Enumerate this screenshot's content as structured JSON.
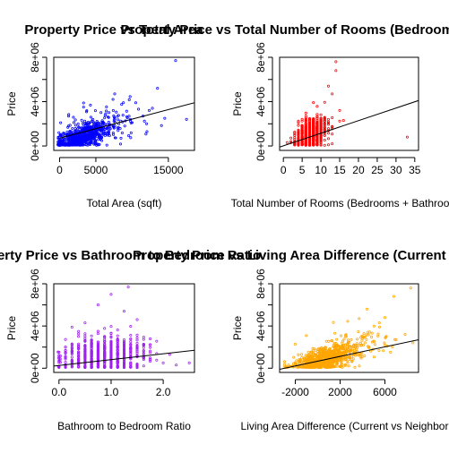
{
  "chart_data": [
    {
      "type": "scatter",
      "title": "Property Price vs Total Area",
      "xlabel": "Total Area (sqft)",
      "ylabel": "Price",
      "color": "#0000ff",
      "xlim": [
        -800,
        18600
      ],
      "ylim": [
        -400000,
        8000000
      ],
      "xticks": [
        0,
        5000,
        15000
      ],
      "xtick_labels": [
        "0",
        "5000",
        "15000"
      ],
      "yticks": [
        0,
        4000000,
        8000000
      ],
      "ytick_labels": [
        "0e+00",
        "4e+06",
        "8e+06"
      ],
      "trend": {
        "x": [
          0,
          18600
        ],
        "y": [
          700000,
          3900000
        ]
      },
      "clusters": [
        {
          "center": [
            2800,
            700000
          ],
          "spread": [
            2000,
            700000
          ],
          "n": 700,
          "corr": 0.65
        },
        {
          "center": [
            6000,
            1900000
          ],
          "spread": [
            2600,
            1000000
          ],
          "n": 120,
          "corr": 0.3
        }
      ],
      "outliers": [
        [
          16000,
          7700000
        ],
        [
          13500,
          5200000
        ],
        [
          11500,
          2700000
        ],
        [
          12800,
          3400000
        ],
        [
          14500,
          2500000
        ],
        [
          17500,
          2400000
        ],
        [
          10500,
          3900000
        ],
        [
          8800,
          3900000
        ],
        [
          7600,
          4700000
        ],
        [
          10000,
          2100000
        ],
        [
          12000,
          2000000
        ]
      ]
    },
    {
      "type": "scatter",
      "title": "Property Price vs Total Number of Rooms (Bedrooms + Bathrooms)",
      "xlabel": "Total Number of Rooms (Bedrooms + Bathrooms)",
      "ylabel": "Price",
      "color": "#ff0000",
      "xlim": [
        -1,
        36
      ],
      "ylim": [
        -400000,
        8000000
      ],
      "xticks": [
        0,
        5,
        10,
        15,
        20,
        25,
        30,
        35
      ],
      "xtick_labels": [
        "0",
        "5",
        "10",
        "15",
        "20",
        "25",
        "30",
        "35"
      ],
      "yticks": [
        0,
        4000000,
        8000000
      ],
      "ytick_labels": [
        "0e+00",
        "4e+06",
        "8e+06"
      ],
      "trend": {
        "x": [
          -1,
          36
        ],
        "y": [
          -100000,
          4100000
        ]
      },
      "discrete_x": true,
      "clusters": [
        {
          "center": [
            7.5,
            1100000
          ],
          "spread": [
            2.0,
            750000
          ],
          "n": 800,
          "corr": 0.35
        }
      ],
      "outliers": [
        [
          14,
          7600000
        ],
        [
          14,
          6800000
        ],
        [
          12,
          5400000
        ],
        [
          13,
          4700000
        ],
        [
          3,
          600000
        ],
        [
          4,
          900000
        ],
        [
          33,
          800000
        ],
        [
          15,
          3200000
        ],
        [
          16,
          2300000
        ],
        [
          2,
          400000
        ],
        [
          1,
          300000
        ]
      ]
    },
    {
      "type": "scatter",
      "title": "Property Price vs Bathroom to Bedroom Ratio",
      "xlabel": "Bathroom to Bedroom Ratio",
      "ylabel": "Price",
      "color": "#a020f0",
      "xlim": [
        -0.1,
        2.6
      ],
      "ylim": [
        -400000,
        8000000
      ],
      "xticks": [
        0.0,
        1.0,
        2.0
      ],
      "xtick_labels": [
        "0.0",
        "1.0",
        "2.0"
      ],
      "yticks": [
        0,
        4000000,
        8000000
      ],
      "ytick_labels": [
        "0e+00",
        "4e+06",
        "8e+06"
      ],
      "trend": {
        "x": [
          -0.1,
          2.6
        ],
        "y": [
          200000,
          1700000
        ]
      },
      "discrete_x": true,
      "clusters": [
        {
          "center": [
            0.85,
            1200000
          ],
          "spread": [
            0.4,
            900000
          ],
          "n": 800,
          "corr": 0.15
        }
      ],
      "outliers": [
        [
          1.0,
          7000000
        ],
        [
          1.33,
          7700000
        ],
        [
          0.75,
          6000000
        ],
        [
          1.25,
          5400000
        ],
        [
          2.0,
          500000
        ],
        [
          2.5,
          500000
        ],
        [
          2.25,
          300000
        ],
        [
          1.75,
          800000
        ],
        [
          1.5,
          4600000
        ],
        [
          0.5,
          4300000
        ]
      ]
    },
    {
      "type": "scatter",
      "title": "Property Price vs Living Area Difference (Current vs Neighbors)",
      "xlabel": "Living Area Difference (Current vs Neighbors)",
      "ylabel": "Price",
      "color": "#ffa500",
      "xlim": [
        -3400,
        9000
      ],
      "ylim": [
        -400000,
        8000000
      ],
      "xticks": [
        -2000,
        2000,
        6000
      ],
      "xtick_labels": [
        "-2000",
        "2000",
        "6000"
      ],
      "yticks": [
        0,
        4000000,
        8000000
      ],
      "ytick_labels": [
        "0e+00",
        "4e+06",
        "8e+06"
      ],
      "trend": {
        "x": [
          -3400,
          9000
        ],
        "y": [
          -100000,
          2700000
        ]
      },
      "clusters": [
        {
          "center": [
            500,
            800000
          ],
          "spread": [
            1300,
            650000
          ],
          "n": 700,
          "corr": 0.55
        },
        {
          "center": [
            3000,
            2000000
          ],
          "spread": [
            1800,
            900000
          ],
          "n": 140,
          "corr": 0.3
        }
      ],
      "outliers": [
        [
          8300,
          7600000
        ],
        [
          6800,
          6800000
        ],
        [
          4400,
          5600000
        ],
        [
          6000,
          4800000
        ],
        [
          5500,
          4300000
        ],
        [
          3700,
          4700000
        ],
        [
          7800,
          3200000
        ],
        [
          7000,
          2700000
        ],
        [
          6200,
          2100000
        ],
        [
          8500,
          2400000
        ],
        [
          -2600,
          300000
        ]
      ]
    }
  ]
}
